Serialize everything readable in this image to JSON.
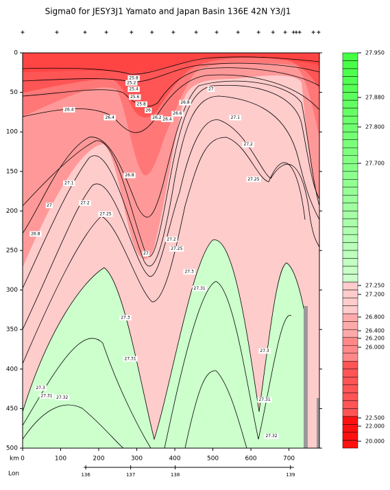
{
  "chart_data": {
    "type": "contour",
    "title": "Sigma0 for JESY3J1 Yamato and Japan Basin 136E 42N Y3/J1",
    "xlabel": "km",
    "x2label": "Lon",
    "xlim": [
      0,
      780
    ],
    "ylim": [
      0,
      500
    ],
    "y_inverted": true,
    "xticks": [
      0,
      100,
      200,
      300,
      400,
      500,
      600,
      700
    ],
    "yticks": [
      0,
      50,
      100,
      150,
      200,
      250,
      300,
      350,
      400,
      450,
      500
    ],
    "x2ticks": [
      136,
      137,
      138,
      139
    ],
    "x2ticks_km": [
      166,
      284,
      401,
      704
    ],
    "stations_km": [
      0,
      90,
      164,
      220,
      286,
      340,
      396,
      456,
      510,
      566,
      620,
      658,
      690,
      712,
      719,
      728,
      764,
      778
    ],
    "contour_labels": [
      {
        "level": 25.8,
        "x": 292,
        "y": 32
      },
      {
        "level": 25.2,
        "x": 286,
        "y": 38
      },
      {
        "level": 25.4,
        "x": 292,
        "y": 46
      },
      {
        "level": 25.6,
        "x": 295,
        "y": 56
      },
      {
        "level": 25.8,
        "x": 312,
        "y": 65
      },
      {
        "level": 26,
        "x": 330,
        "y": 73
      },
      {
        "level": 26.4,
        "x": 122,
        "y": 72
      },
      {
        "level": 26.4,
        "x": 229,
        "y": 82
      },
      {
        "level": 26.2,
        "x": 353,
        "y": 82
      },
      {
        "level": 26.4,
        "x": 380,
        "y": 84
      },
      {
        "level": 26.6,
        "x": 407,
        "y": 77
      },
      {
        "level": 26.8,
        "x": 427,
        "y": 63
      },
      {
        "level": 27,
        "x": 495,
        "y": 46
      },
      {
        "level": 27.1,
        "x": 559,
        "y": 82
      },
      {
        "level": 27.2,
        "x": 593,
        "y": 116
      },
      {
        "level": 26.8,
        "x": 281,
        "y": 155
      },
      {
        "level": 27.1,
        "x": 122,
        "y": 165
      },
      {
        "level": 27.2,
        "x": 164,
        "y": 190
      },
      {
        "level": 27.25,
        "x": 607,
        "y": 160
      },
      {
        "level": 27,
        "x": 70,
        "y": 193
      },
      {
        "level": 27.25,
        "x": 218,
        "y": 204
      },
      {
        "level": 26.8,
        "x": 34,
        "y": 229
      },
      {
        "level": 27.2,
        "x": 391,
        "y": 236
      },
      {
        "level": 27.25,
        "x": 405,
        "y": 248
      },
      {
        "level": 27,
        "x": 324,
        "y": 254
      },
      {
        "level": 27.3,
        "x": 438,
        "y": 277
      },
      {
        "level": 27.31,
        "x": 465,
        "y": 298
      },
      {
        "level": 27.3,
        "x": 270,
        "y": 335
      },
      {
        "level": 27.31,
        "x": 283,
        "y": 387
      },
      {
        "level": 27.3,
        "x": 636,
        "y": 377
      },
      {
        "level": 27.3,
        "x": 47,
        "y": 424
      },
      {
        "level": 27.31,
        "x": 63,
        "y": 434
      },
      {
        "level": 27.32,
        "x": 104,
        "y": 436
      },
      {
        "level": 27.31,
        "x": 636,
        "y": 439
      },
      {
        "level": 27.32,
        "x": 654,
        "y": 485
      }
    ],
    "colorbar_ticks": [
      {
        "value": 27.95,
        "label": "27.950"
      },
      {
        "value": 27.88,
        "label": "27.880"
      },
      {
        "value": 27.8,
        "label": "27.800"
      },
      {
        "value": 27.7,
        "label": "27.700"
      },
      {
        "value": 27.25,
        "label": "27.250"
      },
      {
        "value": 27.2,
        "label": "27.200"
      },
      {
        "value": 26.8,
        "label": "26.800"
      },
      {
        "value": 26.4,
        "label": "26.400"
      },
      {
        "value": 26.2,
        "label": "26.200"
      },
      {
        "value": 26,
        "label": "26.000"
      },
      {
        "value": 22.5,
        "label": "22.500"
      },
      {
        "value": 22,
        "label": "22.000"
      },
      {
        "value": 20,
        "label": "20.000"
      }
    ]
  }
}
